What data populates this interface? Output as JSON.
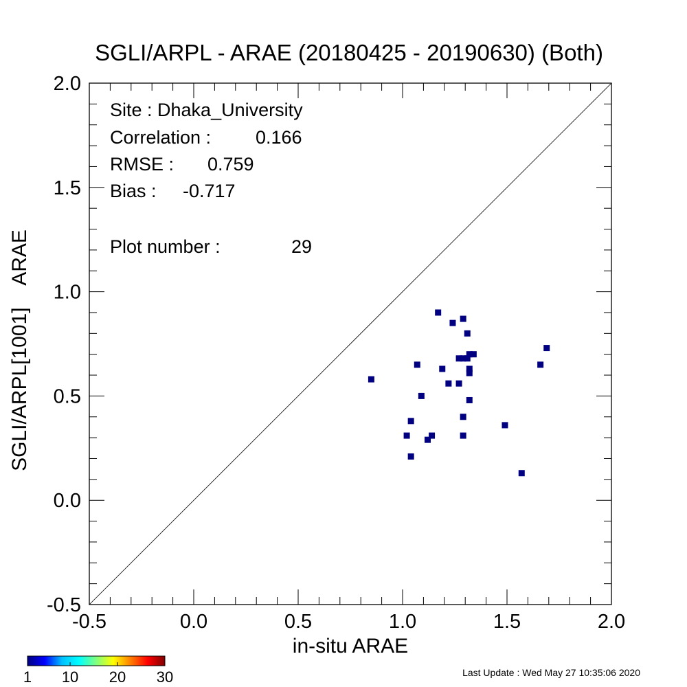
{
  "chart_data": {
    "type": "scatter",
    "title": "SGLI/ARPL - ARAE (20180425 - 20190630) (Both)",
    "xlabel": "in-situ ARAE",
    "ylabel": "SGLI/ARPL[1001]    ARAE",
    "xlim": [
      -0.5,
      2.0
    ],
    "ylim": [
      -0.5,
      2.0
    ],
    "xticks": [
      "-0.5",
      "0.0",
      "0.5",
      "1.0",
      "1.5",
      "2.0"
    ],
    "yticks": [
      "-0.5",
      "0.0",
      "0.5",
      "1.0",
      "1.5",
      "2.0"
    ],
    "reference_line": "1:1",
    "point_color": "#000080",
    "stats": {
      "site": "Site : Dhaka_University",
      "correlation_label": "Correlation :",
      "correlation_value": "0.166",
      "rmse_label": "RMSE :",
      "rmse_value": "0.759",
      "bias_label": "Bias :",
      "bias_value": "-0.717",
      "plot_number_label": "Plot number :",
      "plot_number_value": "29"
    },
    "points": [
      {
        "x": 0.85,
        "y": 0.58
      },
      {
        "x": 1.02,
        "y": 0.31
      },
      {
        "x": 1.04,
        "y": 0.38
      },
      {
        "x": 1.04,
        "y": 0.21
      },
      {
        "x": 1.07,
        "y": 0.65
      },
      {
        "x": 1.09,
        "y": 0.5
      },
      {
        "x": 1.12,
        "y": 0.29
      },
      {
        "x": 1.14,
        "y": 0.31
      },
      {
        "x": 1.17,
        "y": 0.9
      },
      {
        "x": 1.19,
        "y": 0.63
      },
      {
        "x": 1.22,
        "y": 0.56
      },
      {
        "x": 1.24,
        "y": 0.85
      },
      {
        "x": 1.27,
        "y": 0.68
      },
      {
        "x": 1.27,
        "y": 0.56
      },
      {
        "x": 1.29,
        "y": 0.68
      },
      {
        "x": 1.29,
        "y": 0.87
      },
      {
        "x": 1.29,
        "y": 0.4
      },
      {
        "x": 1.29,
        "y": 0.31
      },
      {
        "x": 1.31,
        "y": 0.68
      },
      {
        "x": 1.31,
        "y": 0.8
      },
      {
        "x": 1.32,
        "y": 0.7
      },
      {
        "x": 1.32,
        "y": 0.63
      },
      {
        "x": 1.32,
        "y": 0.61
      },
      {
        "x": 1.32,
        "y": 0.48
      },
      {
        "x": 1.34,
        "y": 0.7
      },
      {
        "x": 1.49,
        "y": 0.36
      },
      {
        "x": 1.57,
        "y": 0.13
      },
      {
        "x": 1.66,
        "y": 0.65
      },
      {
        "x": 1.69,
        "y": 0.73
      }
    ],
    "colorbar": {
      "ticks": [
        "1",
        "10",
        "20",
        "30"
      ],
      "min": 1,
      "max": 30,
      "colors": [
        "#000080",
        "#0000ff",
        "#00bfff",
        "#00ffff",
        "#7fff7f",
        "#ffff00",
        "#ff7f00",
        "#ff0000",
        "#800000"
      ]
    }
  },
  "footer": {
    "last_update": "Last Update : Wed May 27 10:35:06 2020"
  }
}
